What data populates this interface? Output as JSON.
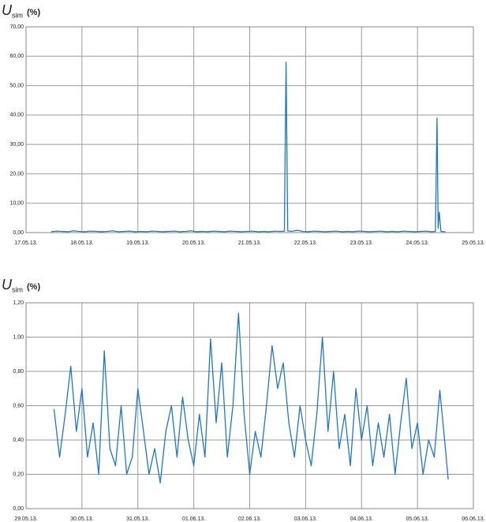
{
  "chart_data": [
    {
      "type": "line",
      "y_label": "U",
      "y_label_sub": "sim",
      "y_label_unit": "(%)",
      "color": "#1f77c4",
      "grid": true,
      "xlim": [
        0,
        8
      ],
      "ylim": [
        0,
        70
      ],
      "xticks": [
        {
          "value": 0,
          "label": "17.05.13."
        },
        {
          "value": 1,
          "label": "18.05.13."
        },
        {
          "value": 2,
          "label": "19.05.13."
        },
        {
          "value": 3,
          "label": "20.05.13."
        },
        {
          "value": 4,
          "label": "21.05.13."
        },
        {
          "value": 5,
          "label": "22.05.13."
        },
        {
          "value": 6,
          "label": "23.05.13."
        },
        {
          "value": 7,
          "label": "24.05.13."
        },
        {
          "value": 8,
          "label": "25.05.13."
        }
      ],
      "yticks": [
        {
          "value": 0,
          "label": "0,00"
        },
        {
          "value": 10,
          "label": "10,00"
        },
        {
          "value": 20,
          "label": "20,00"
        },
        {
          "value": 30,
          "label": "30,00"
        },
        {
          "value": 40,
          "label": "40,00"
        },
        {
          "value": 50,
          "label": "50,00"
        },
        {
          "value": 60,
          "label": "60,00"
        },
        {
          "value": 70,
          "label": "70,00"
        }
      ],
      "x": [
        0.45,
        0.55,
        0.65,
        0.75,
        0.85,
        0.95,
        1.05,
        1.15,
        1.25,
        1.35,
        1.45,
        1.55,
        1.65,
        1.75,
        1.85,
        1.95,
        2.05,
        2.15,
        2.25,
        2.35,
        2.45,
        2.55,
        2.65,
        2.75,
        2.85,
        2.95,
        3.05,
        3.15,
        3.25,
        3.35,
        3.45,
        3.55,
        3.65,
        3.75,
        3.85,
        3.95,
        4.05,
        4.15,
        4.25,
        4.35,
        4.45,
        4.55,
        4.62,
        4.65,
        4.68,
        4.75,
        4.85,
        4.95,
        5.05,
        5.15,
        5.25,
        5.35,
        5.45,
        5.55,
        5.65,
        5.75,
        5.85,
        5.95,
        6.05,
        6.15,
        6.25,
        6.35,
        6.45,
        6.55,
        6.65,
        6.75,
        6.85,
        6.95,
        7.05,
        7.15,
        7.25,
        7.32,
        7.35,
        7.37,
        7.39,
        7.42,
        7.5
      ],
      "values": [
        0.3,
        0.5,
        0.4,
        0.3,
        0.6,
        0.4,
        0.3,
        0.5,
        0.4,
        0.3,
        0.4,
        0.6,
        0.3,
        0.4,
        0.5,
        0.3,
        0.4,
        0.3,
        0.5,
        0.4,
        0.3,
        0.4,
        0.5,
        0.3,
        0.4,
        0.6,
        0.3,
        0.4,
        0.3,
        0.5,
        0.4,
        0.3,
        0.5,
        0.4,
        0.3,
        0.4,
        0.5,
        0.3,
        0.4,
        0.3,
        0.5,
        0.4,
        0.5,
        58,
        0.6,
        0.4,
        0.8,
        0.4,
        0.3,
        0.5,
        0.4,
        0.3,
        0.4,
        0.5,
        0.3,
        0.4,
        0.3,
        0.5,
        0.4,
        0.3,
        0.4,
        0.5,
        0.3,
        0.4,
        0.3,
        0.5,
        0.4,
        0.3,
        0.4,
        0.5,
        0.3,
        0.4,
        39,
        1.5,
        7,
        0.4,
        0.3
      ]
    },
    {
      "type": "line",
      "y_label": "U",
      "y_label_sub": "sim",
      "y_label_unit": "(%)",
      "color": "#1f77c4",
      "grid": true,
      "xlim": [
        0,
        8
      ],
      "ylim": [
        0,
        1.2
      ],
      "xticks": [
        {
          "value": 0,
          "label": "29.05.13."
        },
        {
          "value": 1,
          "label": "30.05.13."
        },
        {
          "value": 2,
          "label": "31.05.13."
        },
        {
          "value": 3,
          "label": "01.06.13."
        },
        {
          "value": 4,
          "label": "02.06.13."
        },
        {
          "value": 5,
          "label": "03.06.13."
        },
        {
          "value": 6,
          "label": "04.06.13."
        },
        {
          "value": 7,
          "label": "05.06.13."
        },
        {
          "value": 8,
          "label": "06.06.13."
        }
      ],
      "yticks": [
        {
          "value": 0,
          "label": "0,00"
        },
        {
          "value": 0.2,
          "label": "0,20"
        },
        {
          "value": 0.4,
          "label": "0,40"
        },
        {
          "value": 0.6,
          "label": "0,60"
        },
        {
          "value": 0.8,
          "label": "0,80"
        },
        {
          "value": 1,
          "label": "1,00"
        },
        {
          "value": 1.2,
          "label": "1,20"
        }
      ],
      "x": [
        0.5,
        0.6,
        0.7,
        0.8,
        0.9,
        1.0,
        1.1,
        1.2,
        1.3,
        1.4,
        1.5,
        1.6,
        1.7,
        1.8,
        1.9,
        2.0,
        2.1,
        2.2,
        2.3,
        2.4,
        2.5,
        2.6,
        2.7,
        2.8,
        2.9,
        3.0,
        3.1,
        3.2,
        3.3,
        3.4,
        3.5,
        3.6,
        3.7,
        3.8,
        3.9,
        4.0,
        4.1,
        4.2,
        4.3,
        4.4,
        4.5,
        4.6,
        4.7,
        4.8,
        4.9,
        5.0,
        5.1,
        5.2,
        5.3,
        5.4,
        5.5,
        5.6,
        5.7,
        5.8,
        5.9,
        6.0,
        6.1,
        6.2,
        6.3,
        6.4,
        6.5,
        6.6,
        6.7,
        6.8,
        6.9,
        7.0,
        7.1,
        7.2,
        7.3,
        7.4,
        7.5,
        7.55
      ],
      "values": [
        0.58,
        0.3,
        0.55,
        0.83,
        0.45,
        0.7,
        0.3,
        0.5,
        0.2,
        0.92,
        0.35,
        0.25,
        0.6,
        0.2,
        0.3,
        0.7,
        0.45,
        0.2,
        0.35,
        0.15,
        0.45,
        0.6,
        0.3,
        0.65,
        0.4,
        0.25,
        0.55,
        0.3,
        0.99,
        0.5,
        0.85,
        0.3,
        0.6,
        1.14,
        0.55,
        0.2,
        0.45,
        0.3,
        0.6,
        0.95,
        0.7,
        0.85,
        0.5,
        0.3,
        0.6,
        0.4,
        0.25,
        0.55,
        1.0,
        0.45,
        0.8,
        0.35,
        0.55,
        0.25,
        0.7,
        0.4,
        0.6,
        0.25,
        0.5,
        0.3,
        0.55,
        0.2,
        0.5,
        0.76,
        0.35,
        0.5,
        0.2,
        0.4,
        0.3,
        0.69,
        0.35,
        0.17
      ]
    }
  ]
}
